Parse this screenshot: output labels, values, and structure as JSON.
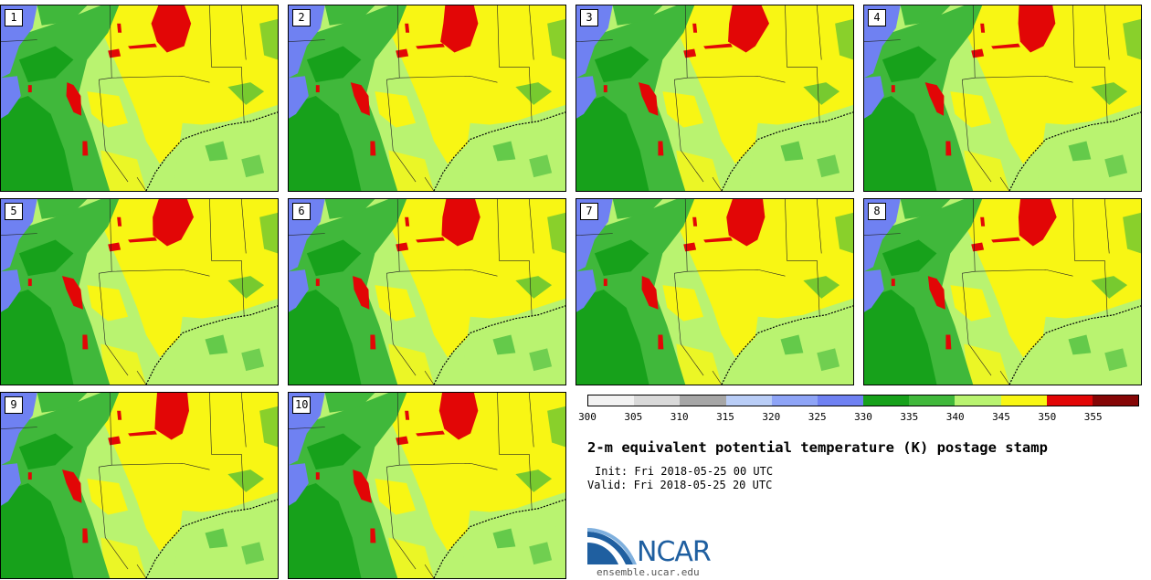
{
  "panels": [
    {
      "label": "1"
    },
    {
      "label": "2"
    },
    {
      "label": "3"
    },
    {
      "label": "4"
    },
    {
      "label": "5"
    },
    {
      "label": "6"
    },
    {
      "label": "7"
    },
    {
      "label": "8"
    },
    {
      "label": "9"
    },
    {
      "label": "10"
    }
  ],
  "colorbar": {
    "colors": [
      "#f2f2f2",
      "#d9d9d9",
      "#a6a6a6",
      "#b9cdf6",
      "#8ea4f6",
      "#6f81f2",
      "#17a11b",
      "#40b83b",
      "#b9f370",
      "#f8f614",
      "#e20606",
      "#850606"
    ],
    "tick_labels": [
      "300",
      "305",
      "310",
      "315",
      "320",
      "325",
      "330",
      "335",
      "340",
      "345",
      "350",
      "355"
    ]
  },
  "title": "2-m equivalent potential temperature (K) postage stamp",
  "init": "Init: Fri 2018-05-25 00 UTC",
  "valid": "Valid: Fri 2018-05-25 20 UTC",
  "logo_text": "NCAR",
  "url": "ensemble.ucar.edu"
}
